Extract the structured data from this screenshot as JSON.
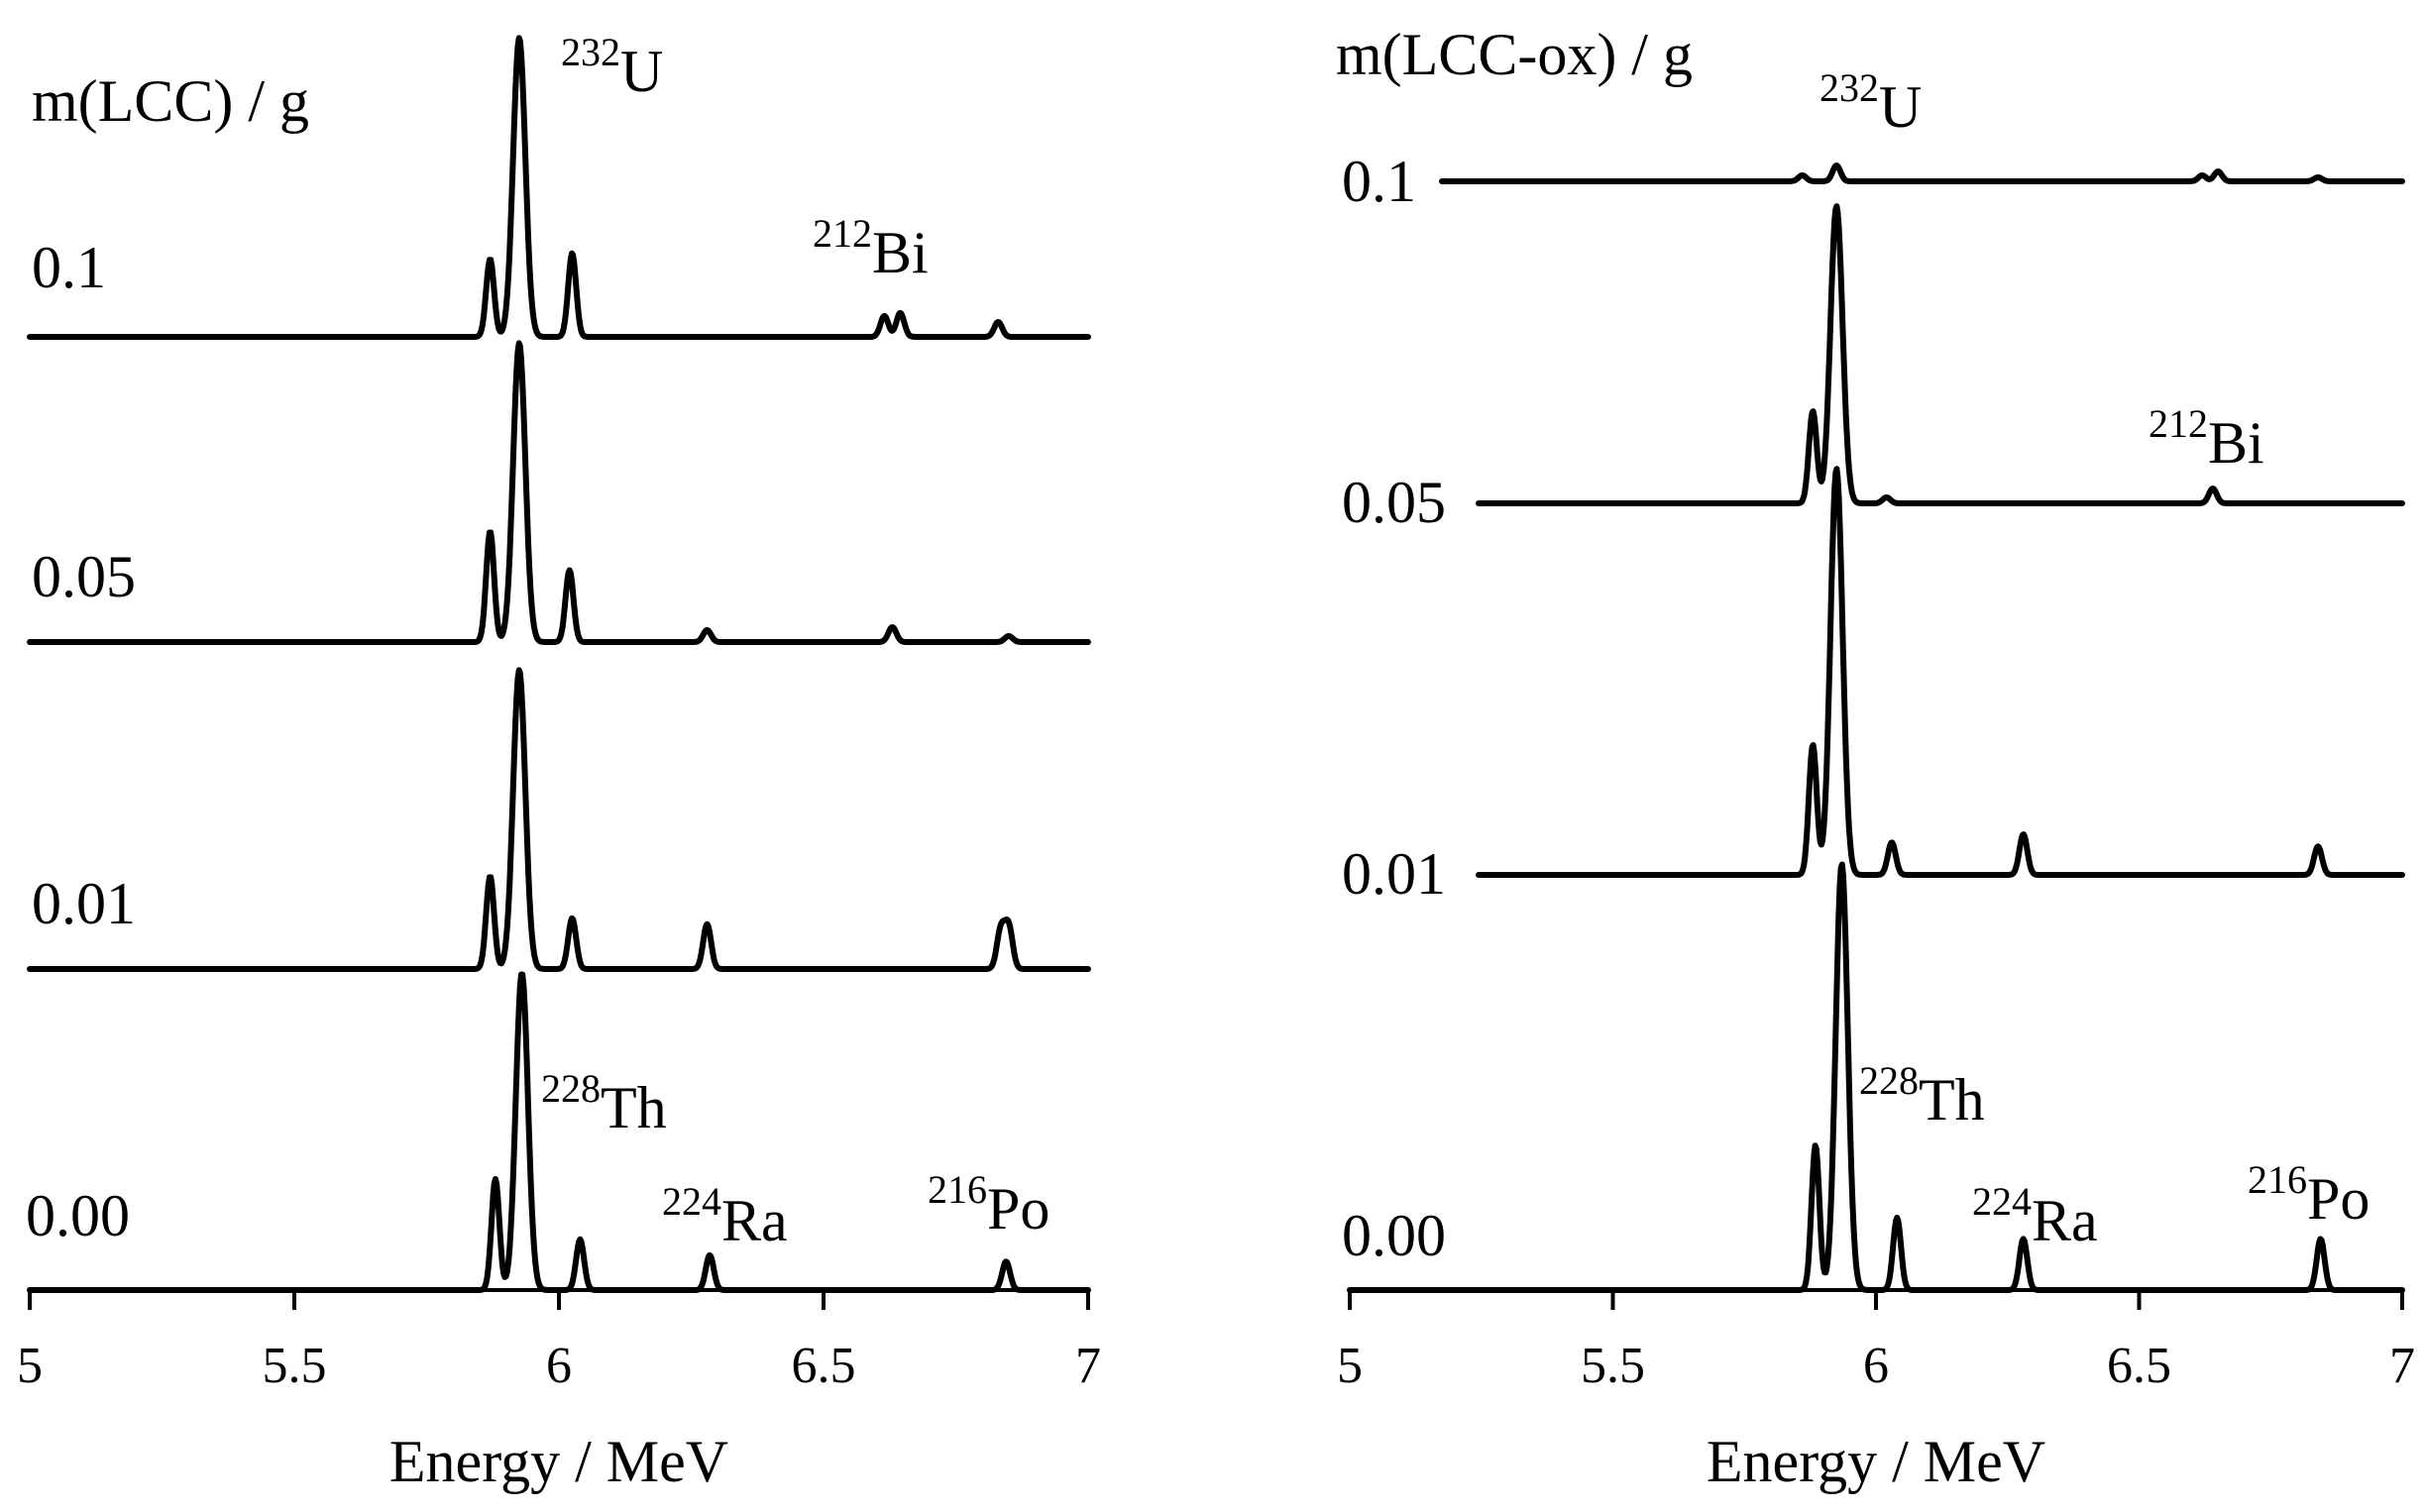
{
  "chart_data": [
    {
      "type": "line",
      "title": "m(LCC) / g",
      "xlabel": "Energy / MeV",
      "ylabel": "",
      "xlim": [
        5,
        7
      ],
      "xticks": [
        "5",
        "5.5",
        "6",
        "6.5",
        "7"
      ],
      "grid": false,
      "series": [
        {
          "name": "0.1",
          "peaks": [
            [
              5.87,
              0.26
            ],
            [
              5.925,
              1.0
            ],
            [
              6.025,
              0.28
            ],
            [
              6.615,
              0.07
            ],
            [
              6.645,
              0.08
            ],
            [
              6.83,
              0.05
            ]
          ]
        },
        {
          "name": "0.05",
          "peaks": [
            [
              5.87,
              0.37
            ],
            [
              5.925,
              1.0
            ],
            [
              6.02,
              0.24
            ],
            [
              6.28,
              0.04
            ],
            [
              6.63,
              0.05
            ],
            [
              6.85,
              0.02
            ]
          ]
        },
        {
          "name": "0.01",
          "peaks": [
            [
              5.87,
              0.31
            ],
            [
              5.925,
              1.0
            ],
            [
              6.025,
              0.17
            ],
            [
              6.28,
              0.15
            ],
            [
              6.835,
              0.13
            ],
            [
              6.85,
              0.14
            ]
          ]
        },
        {
          "name": "0.00",
          "peaks": [
            [
              5.88,
              0.35
            ],
            [
              5.93,
              1.0
            ],
            [
              6.04,
              0.16
            ],
            [
              6.285,
              0.11
            ],
            [
              6.845,
              0.09
            ]
          ]
        }
      ],
      "annotations": [
        {
          "sup": "232",
          "main": "U"
        },
        {
          "sup": "212",
          "main": "Bi"
        },
        {
          "sup": "228",
          "main": "Th"
        },
        {
          "sup": "224",
          "main": "Ra"
        },
        {
          "sup": "216",
          "main": "Po"
        }
      ]
    },
    {
      "type": "line",
      "title": "m(LCC-ox) / g",
      "xlabel": "Energy / MeV",
      "ylabel": "",
      "xlim": [
        5,
        7
      ],
      "xticks": [
        "5",
        "5.5",
        "6",
        "6.5",
        "7"
      ],
      "grid": false,
      "series": [
        {
          "name": "0.1",
          "peaks": [
            [
              5.86,
              0.03
            ],
            [
              5.925,
              0.08
            ],
            [
              6.62,
              0.03
            ],
            [
              6.65,
              0.05
            ],
            [
              6.84,
              0.02
            ]
          ]
        },
        {
          "name": "0.05",
          "peaks": [
            [
              5.88,
              0.31
            ],
            [
              5.925,
              1.0
            ],
            [
              6.02,
              0.02
            ],
            [
              6.64,
              0.05
            ]
          ]
        },
        {
          "name": "0.01",
          "peaks": [
            [
              5.88,
              0.32
            ],
            [
              5.925,
              1.0
            ],
            [
              6.03,
              0.08
            ],
            [
              6.28,
              0.1
            ],
            [
              6.84,
              0.07
            ]
          ]
        },
        {
          "name": "0.00",
          "peaks": [
            [
              5.885,
              0.34
            ],
            [
              5.935,
              1.0
            ],
            [
              6.04,
              0.17
            ],
            [
              6.28,
              0.12
            ],
            [
              6.845,
              0.12
            ]
          ]
        }
      ],
      "annotations": [
        {
          "sup": "232",
          "main": "U"
        },
        {
          "sup": "212",
          "main": "Bi"
        },
        {
          "sup": "228",
          "main": "Th"
        },
        {
          "sup": "224",
          "main": "Ra"
        },
        {
          "sup": "216",
          "main": "Po"
        }
      ]
    }
  ]
}
